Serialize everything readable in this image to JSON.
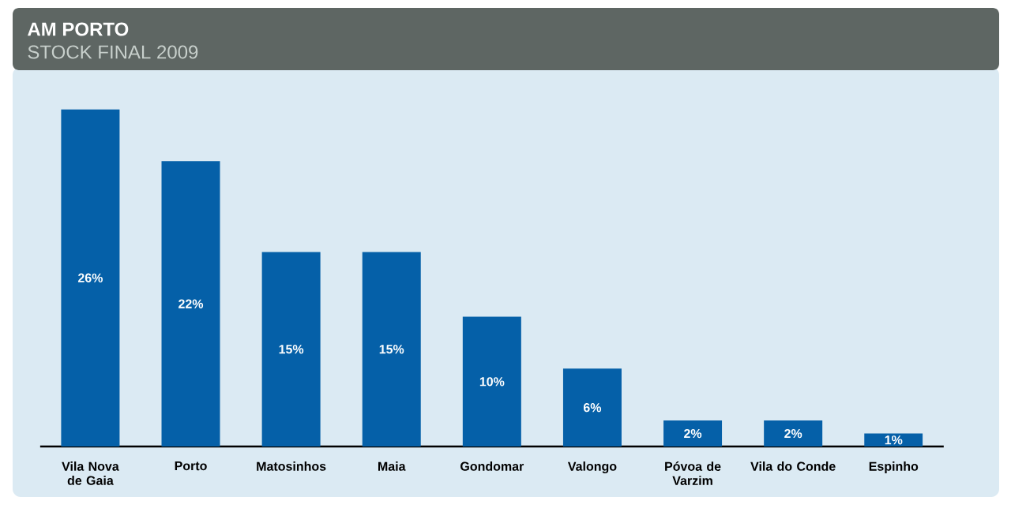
{
  "chart_data": {
    "type": "bar",
    "title": "AM PORTO",
    "subtitle": "STOCK FINAL 2009",
    "categories": [
      "Vila Nova de Gaia",
      "Porto",
      "Matosinhos",
      "Maia",
      "Gondomar",
      "Valongo",
      "Póvoa de Varzim",
      "Vila do Conde",
      "Espinho"
    ],
    "values": [
      26,
      22,
      15,
      15,
      10,
      6,
      2,
      2,
      1
    ],
    "color": "#0560a8",
    "data_labels": true,
    "value_labels": [
      "26%",
      "22%",
      "15%",
      "15%",
      "10%",
      "6%",
      "2%",
      "2%",
      "1%"
    ]
  }
}
